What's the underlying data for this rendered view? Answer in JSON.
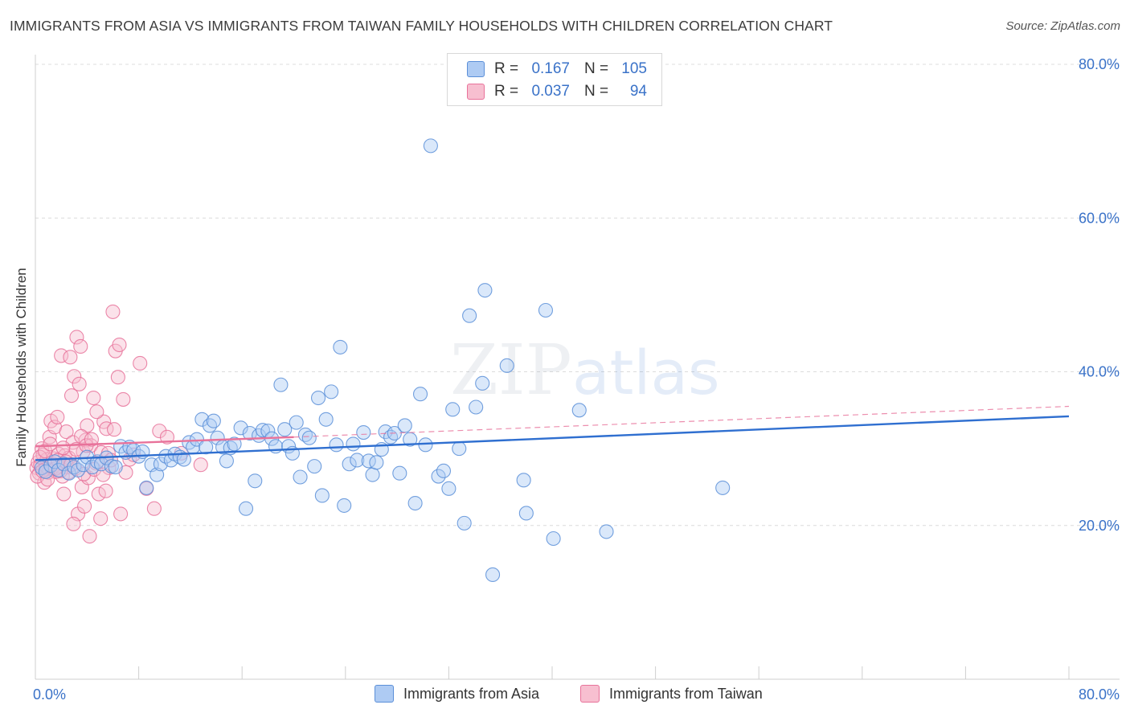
{
  "header": {
    "title": "IMMIGRANTS FROM ASIA VS IMMIGRANTS FROM TAIWAN FAMILY HOUSEHOLDS WITH CHILDREN CORRELATION CHART",
    "source": "Source: ZipAtlas.com"
  },
  "watermark": {
    "zip": "ZIP",
    "atlas": "atlas"
  },
  "legend": {
    "r_label": "R =",
    "n_label": "N =",
    "rows": [
      {
        "name": "Immigrants from Asia",
        "r": "0.167",
        "n": "105",
        "fill": "#aecbf3",
        "stroke": "#5b8fd8"
      },
      {
        "name": "Immigrants from Taiwan",
        "r": "0.037",
        "n": "94",
        "fill": "#f7bfd0",
        "stroke": "#e8729a"
      }
    ]
  },
  "chart_data": {
    "type": "scatter",
    "title": "IMMIGRANTS FROM ASIA VS IMMIGRANTS FROM TAIWAN FAMILY HOUSEHOLDS WITH CHILDREN CORRELATION CHART",
    "xlabel": "",
    "ylabel": "Family Households with Children",
    "xlim": [
      0,
      80
    ],
    "ylim": [
      0,
      80
    ],
    "x_tick_labels": [
      "0.0%",
      "80.0%"
    ],
    "y_ticks": [
      20,
      40,
      60,
      80
    ],
    "y_tick_labels": [
      "20.0%",
      "40.0%",
      "60.0%",
      "80.0%"
    ],
    "grid": true,
    "series": [
      {
        "name": "Immigrants from Asia",
        "color": "#5b8fd8",
        "trend": {
          "x": [
            0,
            80
          ],
          "y": [
            28.5,
            34.2
          ],
          "style": "solid"
        },
        "points": [
          [
            0.5,
            27.5
          ],
          [
            0.8,
            27.0
          ],
          [
            1.2,
            27.8
          ],
          [
            1.5,
            28.3
          ],
          [
            1.8,
            27.2
          ],
          [
            2.2,
            28.0
          ],
          [
            2.6,
            26.8
          ],
          [
            3.0,
            27.6
          ],
          [
            3.3,
            27.2
          ],
          [
            3.7,
            27.9
          ],
          [
            4.0,
            28.9
          ],
          [
            4.4,
            27.6
          ],
          [
            4.8,
            28.3
          ],
          [
            5.1,
            28.0
          ],
          [
            5.5,
            28.8
          ],
          [
            5.9,
            27.7
          ],
          [
            6.2,
            27.6
          ],
          [
            6.6,
            30.3
          ],
          [
            7.0,
            29.5
          ],
          [
            7.3,
            30.2
          ],
          [
            7.6,
            29.8
          ],
          [
            8.0,
            29.0
          ],
          [
            8.3,
            29.6
          ],
          [
            8.6,
            24.9
          ],
          [
            9.0,
            27.9
          ],
          [
            9.4,
            26.6
          ],
          [
            9.7,
            28.0
          ],
          [
            10.1,
            29.0
          ],
          [
            10.5,
            28.5
          ],
          [
            10.8,
            29.3
          ],
          [
            11.2,
            28.9
          ],
          [
            11.5,
            28.6
          ],
          [
            11.9,
            30.8
          ],
          [
            12.2,
            30.2
          ],
          [
            12.5,
            31.2
          ],
          [
            12.9,
            33.8
          ],
          [
            13.2,
            30.2
          ],
          [
            13.5,
            33.0
          ],
          [
            13.8,
            33.6
          ],
          [
            14.1,
            31.4
          ],
          [
            14.5,
            30.2
          ],
          [
            14.8,
            28.4
          ],
          [
            15.1,
            30.1
          ],
          [
            15.4,
            30.6
          ],
          [
            15.9,
            32.7
          ],
          [
            16.3,
            22.2
          ],
          [
            16.6,
            32.0
          ],
          [
            17.0,
            25.8
          ],
          [
            17.3,
            31.7
          ],
          [
            17.6,
            32.4
          ],
          [
            18.0,
            32.3
          ],
          [
            18.3,
            31.3
          ],
          [
            18.6,
            30.3
          ],
          [
            19.0,
            38.3
          ],
          [
            19.3,
            32.5
          ],
          [
            19.6,
            30.3
          ],
          [
            19.9,
            29.4
          ],
          [
            20.2,
            33.4
          ],
          [
            20.5,
            26.3
          ],
          [
            20.9,
            31.8
          ],
          [
            21.2,
            31.4
          ],
          [
            21.6,
            27.7
          ],
          [
            21.9,
            36.6
          ],
          [
            22.2,
            23.9
          ],
          [
            22.5,
            33.8
          ],
          [
            22.9,
            37.4
          ],
          [
            23.3,
            30.5
          ],
          [
            23.6,
            43.2
          ],
          [
            23.9,
            22.6
          ],
          [
            24.3,
            28.0
          ],
          [
            24.6,
            30.6
          ],
          [
            24.9,
            28.5
          ],
          [
            25.4,
            32.1
          ],
          [
            25.8,
            28.4
          ],
          [
            26.1,
            26.6
          ],
          [
            26.4,
            28.2
          ],
          [
            26.8,
            29.9
          ],
          [
            27.1,
            32.2
          ],
          [
            27.5,
            31.5
          ],
          [
            27.8,
            32.0
          ],
          [
            28.2,
            26.8
          ],
          [
            28.6,
            33.0
          ],
          [
            29.0,
            31.2
          ],
          [
            29.4,
            22.9
          ],
          [
            29.8,
            37.1
          ],
          [
            30.2,
            30.5
          ],
          [
            30.6,
            69.4
          ],
          [
            31.2,
            26.4
          ],
          [
            31.6,
            27.1
          ],
          [
            32.0,
            24.8
          ],
          [
            32.3,
            35.1
          ],
          [
            32.8,
            30.0
          ],
          [
            33.2,
            20.3
          ],
          [
            33.6,
            47.3
          ],
          [
            34.1,
            35.4
          ],
          [
            34.6,
            38.5
          ],
          [
            34.8,
            50.6
          ],
          [
            35.4,
            13.6
          ],
          [
            36.5,
            40.8
          ],
          [
            37.8,
            25.9
          ],
          [
            38.0,
            21.6
          ],
          [
            39.5,
            48.0
          ],
          [
            40.1,
            18.3
          ],
          [
            42.1,
            35.0
          ],
          [
            44.2,
            19.2
          ],
          [
            53.2,
            24.9
          ]
        ]
      },
      {
        "name": "Immigrants from Taiwan",
        "color": "#e8729a",
        "trend": {
          "x": [
            0,
            20
          ],
          "y": [
            30.3,
            31.5
          ],
          "style": "solid",
          "extended": {
            "x": [
              20,
              80
            ],
            "y": [
              31.5,
              35.5
            ],
            "style": "dashed"
          }
        },
        "points": [
          [
            0.1,
            27.5
          ],
          [
            0.2,
            28.2
          ],
          [
            0.3,
            26.8
          ],
          [
            0.4,
            27.9
          ],
          [
            0.5,
            30.0
          ],
          [
            0.6,
            29.2
          ],
          [
            0.7,
            25.6
          ],
          [
            0.8,
            27.4
          ],
          [
            0.9,
            28.6
          ],
          [
            1.0,
            26.9
          ],
          [
            1.1,
            31.5
          ],
          [
            1.2,
            33.6
          ],
          [
            1.3,
            27.3
          ],
          [
            1.4,
            28.7
          ],
          [
            1.5,
            32.8
          ],
          [
            1.6,
            27.0
          ],
          [
            1.7,
            34.1
          ],
          [
            1.8,
            29.3
          ],
          [
            1.9,
            27.7
          ],
          [
            2.0,
            42.1
          ],
          [
            2.1,
            26.4
          ],
          [
            2.2,
            24.1
          ],
          [
            2.3,
            29.1
          ],
          [
            2.4,
            32.2
          ],
          [
            2.5,
            27.6
          ],
          [
            2.6,
            28.8
          ],
          [
            2.7,
            41.9
          ],
          [
            2.8,
            36.9
          ],
          [
            2.9,
            30.8
          ],
          [
            3.0,
            39.4
          ],
          [
            3.1,
            27.4
          ],
          [
            3.2,
            44.5
          ],
          [
            3.3,
            21.5
          ],
          [
            3.4,
            38.4
          ],
          [
            3.5,
            43.3
          ],
          [
            3.6,
            25.0
          ],
          [
            3.7,
            29.6
          ],
          [
            3.8,
            22.5
          ],
          [
            3.9,
            31.1
          ],
          [
            4.0,
            33.0
          ],
          [
            4.1,
            26.2
          ],
          [
            4.2,
            18.6
          ],
          [
            4.3,
            30.4
          ],
          [
            4.5,
            36.6
          ],
          [
            4.7,
            28.1
          ],
          [
            4.9,
            24.1
          ],
          [
            5.1,
            29.5
          ],
          [
            5.3,
            33.5
          ],
          [
            5.5,
            32.6
          ],
          [
            5.7,
            27.5
          ],
          [
            6.0,
            47.8
          ],
          [
            6.2,
            42.7
          ],
          [
            6.4,
            39.3
          ],
          [
            6.5,
            43.5
          ],
          [
            6.6,
            21.5
          ],
          [
            6.8,
            36.4
          ],
          [
            7.0,
            26.9
          ],
          [
            7.3,
            28.6
          ],
          [
            7.6,
            29.2
          ],
          [
            8.1,
            41.1
          ],
          [
            8.6,
            24.8
          ],
          [
            9.2,
            22.2
          ],
          [
            9.6,
            32.3
          ],
          [
            10.2,
            31.5
          ],
          [
            11.3,
            29.4
          ],
          [
            12.8,
            27.9
          ],
          [
            0.15,
            26.4
          ],
          [
            0.35,
            28.9
          ],
          [
            0.55,
            27.1
          ],
          [
            0.75,
            29.7
          ],
          [
            0.95,
            26.0
          ],
          [
            1.15,
            30.6
          ],
          [
            1.35,
            28.0
          ],
          [
            1.55,
            27.4
          ],
          [
            1.75,
            28.5
          ],
          [
            1.95,
            27.1
          ],
          [
            2.15,
            30.1
          ],
          [
            2.35,
            28.3
          ],
          [
            2.55,
            26.9
          ],
          [
            2.75,
            27.9
          ],
          [
            2.95,
            20.2
          ],
          [
            3.15,
            29.9
          ],
          [
            3.55,
            31.6
          ],
          [
            3.75,
            26.7
          ],
          [
            3.95,
            30.4
          ],
          [
            4.35,
            31.2
          ],
          [
            4.55,
            27.3
          ],
          [
            4.75,
            34.8
          ],
          [
            5.05,
            20.9
          ],
          [
            5.25,
            26.6
          ],
          [
            5.45,
            24.5
          ],
          [
            5.65,
            29.4
          ],
          [
            5.85,
            28.5
          ],
          [
            6.1,
            32.5
          ]
        ]
      }
    ]
  }
}
